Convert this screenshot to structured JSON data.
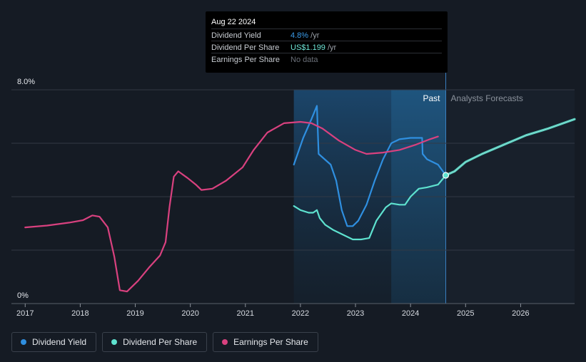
{
  "tooltip": {
    "date": "Aug 22 2024",
    "rows": [
      {
        "label": "Dividend Yield",
        "value": "4.8%",
        "unit": " /yr",
        "color": "#3b9be8"
      },
      {
        "label": "Dividend Per Share",
        "value": "US$1.199",
        "unit": " /yr",
        "color": "#6ee7d7"
      },
      {
        "label": "Earnings Per Share",
        "value": "No data",
        "unit": "",
        "color": "#6b7079"
      }
    ]
  },
  "regions": {
    "past_label": "Past",
    "forecast_label": "Analysts Forecasts"
  },
  "legend": [
    {
      "label": "Dividend Yield",
      "color": "#2f8fe0"
    },
    {
      "label": "Dividend Per Share",
      "color": "#5ee2cf"
    },
    {
      "label": "Earnings Per Share",
      "color": "#d9417f"
    }
  ],
  "chart_data": {
    "type": "line",
    "y_tick_labels": [
      "8.0%",
      "0%"
    ],
    "ylim": [
      0,
      8
    ],
    "xlim": [
      2016.75,
      2026.98
    ],
    "x_tick_labels": [
      "2017",
      "2018",
      "2019",
      "2020",
      "2021",
      "2022",
      "2023",
      "2024",
      "2025",
      "2026"
    ],
    "x_ticks": [
      2017,
      2018,
      2019,
      2020,
      2021,
      2022,
      2023,
      2024,
      2025,
      2026
    ],
    "grid": true,
    "shaded_range": [
      2021.88,
      2024.64
    ],
    "highlight_range": [
      2023.65,
      2024.64
    ],
    "past_end": 2024.64,
    "series": [
      {
        "name": "Dividend Yield",
        "color": "#2f8fe0",
        "points": [
          [
            2021.88,
            5.2
          ],
          [
            2022.05,
            6.2
          ],
          [
            2022.2,
            6.9
          ],
          [
            2022.3,
            7.4
          ],
          [
            2022.33,
            5.6
          ],
          [
            2022.55,
            5.2
          ],
          [
            2022.65,
            4.6
          ],
          [
            2022.75,
            3.5
          ],
          [
            2022.85,
            2.9
          ],
          [
            2022.95,
            2.9
          ],
          [
            2023.05,
            3.1
          ],
          [
            2023.2,
            3.7
          ],
          [
            2023.35,
            4.6
          ],
          [
            2023.5,
            5.4
          ],
          [
            2023.65,
            6.0
          ],
          [
            2023.8,
            6.15
          ],
          [
            2024.0,
            6.2
          ],
          [
            2024.21,
            6.2
          ],
          [
            2024.22,
            5.6
          ],
          [
            2024.3,
            5.4
          ],
          [
            2024.5,
            5.2
          ],
          [
            2024.64,
            4.8
          ]
        ]
      },
      {
        "name": "Dividend Per Share",
        "color": "#5ee2cf",
        "points": [
          [
            2021.88,
            3.65
          ],
          [
            2022.0,
            3.5
          ],
          [
            2022.15,
            3.4
          ],
          [
            2022.23,
            3.4
          ],
          [
            2022.3,
            3.5
          ],
          [
            2022.35,
            3.2
          ],
          [
            2022.45,
            2.95
          ],
          [
            2022.6,
            2.75
          ],
          [
            2022.8,
            2.55
          ],
          [
            2022.95,
            2.4
          ],
          [
            2023.1,
            2.4
          ],
          [
            2023.25,
            2.45
          ],
          [
            2023.38,
            3.1
          ],
          [
            2023.55,
            3.6
          ],
          [
            2023.65,
            3.75
          ],
          [
            2023.8,
            3.7
          ],
          [
            2023.9,
            3.7
          ],
          [
            2024.0,
            4.0
          ],
          [
            2024.15,
            4.3
          ],
          [
            2024.3,
            4.35
          ],
          [
            2024.5,
            4.45
          ],
          [
            2024.64,
            4.8
          ],
          [
            2024.8,
            4.95
          ],
          [
            2025.0,
            5.3
          ],
          [
            2025.3,
            5.6
          ],
          [
            2025.7,
            5.95
          ],
          [
            2026.1,
            6.3
          ],
          [
            2026.5,
            6.55
          ],
          [
            2026.98,
            6.9
          ]
        ]
      },
      {
        "name": "Earnings Per Share",
        "color": "#d9417f",
        "points": [
          [
            2017.0,
            2.85
          ],
          [
            2017.4,
            2.92
          ],
          [
            2017.8,
            3.03
          ],
          [
            2018.05,
            3.12
          ],
          [
            2018.22,
            3.3
          ],
          [
            2018.35,
            3.25
          ],
          [
            2018.5,
            2.85
          ],
          [
            2018.62,
            1.75
          ],
          [
            2018.72,
            0.5
          ],
          [
            2018.85,
            0.45
          ],
          [
            2019.05,
            0.85
          ],
          [
            2019.25,
            1.35
          ],
          [
            2019.45,
            1.8
          ],
          [
            2019.55,
            2.3
          ],
          [
            2019.62,
            3.6
          ],
          [
            2019.7,
            4.75
          ],
          [
            2019.78,
            4.95
          ],
          [
            2019.95,
            4.7
          ],
          [
            2020.1,
            4.45
          ],
          [
            2020.2,
            4.25
          ],
          [
            2020.4,
            4.3
          ],
          [
            2020.65,
            4.6
          ],
          [
            2020.95,
            5.1
          ],
          [
            2021.15,
            5.75
          ],
          [
            2021.4,
            6.4
          ],
          [
            2021.7,
            6.75
          ],
          [
            2022.0,
            6.8
          ],
          [
            2022.2,
            6.75
          ],
          [
            2022.4,
            6.55
          ],
          [
            2022.7,
            6.1
          ],
          [
            2023.0,
            5.75
          ],
          [
            2023.2,
            5.6
          ],
          [
            2023.5,
            5.65
          ],
          [
            2023.8,
            5.75
          ],
          [
            2024.1,
            5.95
          ],
          [
            2024.35,
            6.15
          ],
          [
            2024.5,
            6.25
          ]
        ]
      }
    ],
    "highlight_point": {
      "series": "Dividend Per Share",
      "x": 2024.64,
      "y": 4.8
    }
  }
}
